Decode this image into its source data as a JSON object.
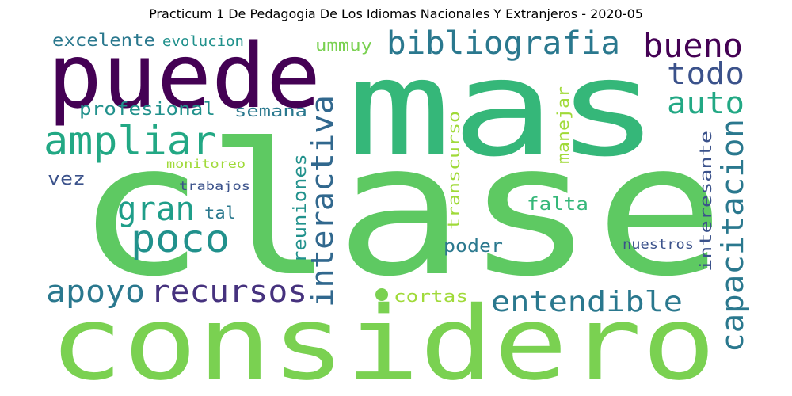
{
  "title": "Practicum 1 De Pedagogia De Los Idiomas Nacionales Y Extranjeros - 2020-05",
  "words": [
    {
      "text": "clase",
      "color": "#5ec962"
    },
    {
      "text": "considero",
      "color": "#7ad151"
    },
    {
      "text": "mas",
      "color": "#35b779"
    },
    {
      "text": "puede",
      "color": "#440154"
    },
    {
      "text": "bibliografia",
      "color": "#2a788e"
    },
    {
      "text": "bueno",
      "color": "#440154"
    },
    {
      "text": "todo",
      "color": "#3b528b"
    },
    {
      "text": "auto",
      "color": "#22a884"
    },
    {
      "text": "ampliar",
      "color": "#22a884"
    },
    {
      "text": "excelente",
      "color": "#2a788e"
    },
    {
      "text": "evolucion",
      "color": "#21918c"
    },
    {
      "text": "ummuy",
      "color": "#7ad151"
    },
    {
      "text": "profesional",
      "color": "#21918c"
    },
    {
      "text": "semana",
      "color": "#2a788e"
    },
    {
      "text": "interactiva",
      "color": "#31688e"
    },
    {
      "text": "capacitacion",
      "color": "#2a788e"
    },
    {
      "text": "poco",
      "color": "#21918c"
    },
    {
      "text": "gran",
      "color": "#1f9e89"
    },
    {
      "text": "tal",
      "color": "#2a788e"
    },
    {
      "text": "vez",
      "color": "#3b528b"
    },
    {
      "text": "monitoreo",
      "color": "#a0da39"
    },
    {
      "text": "trabajos",
      "color": "#3b528b"
    },
    {
      "text": "reuniones",
      "color": "#21918c"
    },
    {
      "text": "transcurso",
      "color": "#a0da39"
    },
    {
      "text": "manejar",
      "color": "#a0da39"
    },
    {
      "text": "interesante",
      "color": "#3b528b"
    },
    {
      "text": "falta",
      "color": "#35b779"
    },
    {
      "text": "poder",
      "color": "#2a788e"
    },
    {
      "text": "nuestros",
      "color": "#3b528b"
    },
    {
      "text": "apoyo",
      "color": "#2a788e"
    },
    {
      "text": "recursos",
      "color": "#46327e"
    },
    {
      "text": "entendible",
      "color": "#2a788e"
    },
    {
      "text": "cortas",
      "color": "#a0da39"
    }
  ]
}
